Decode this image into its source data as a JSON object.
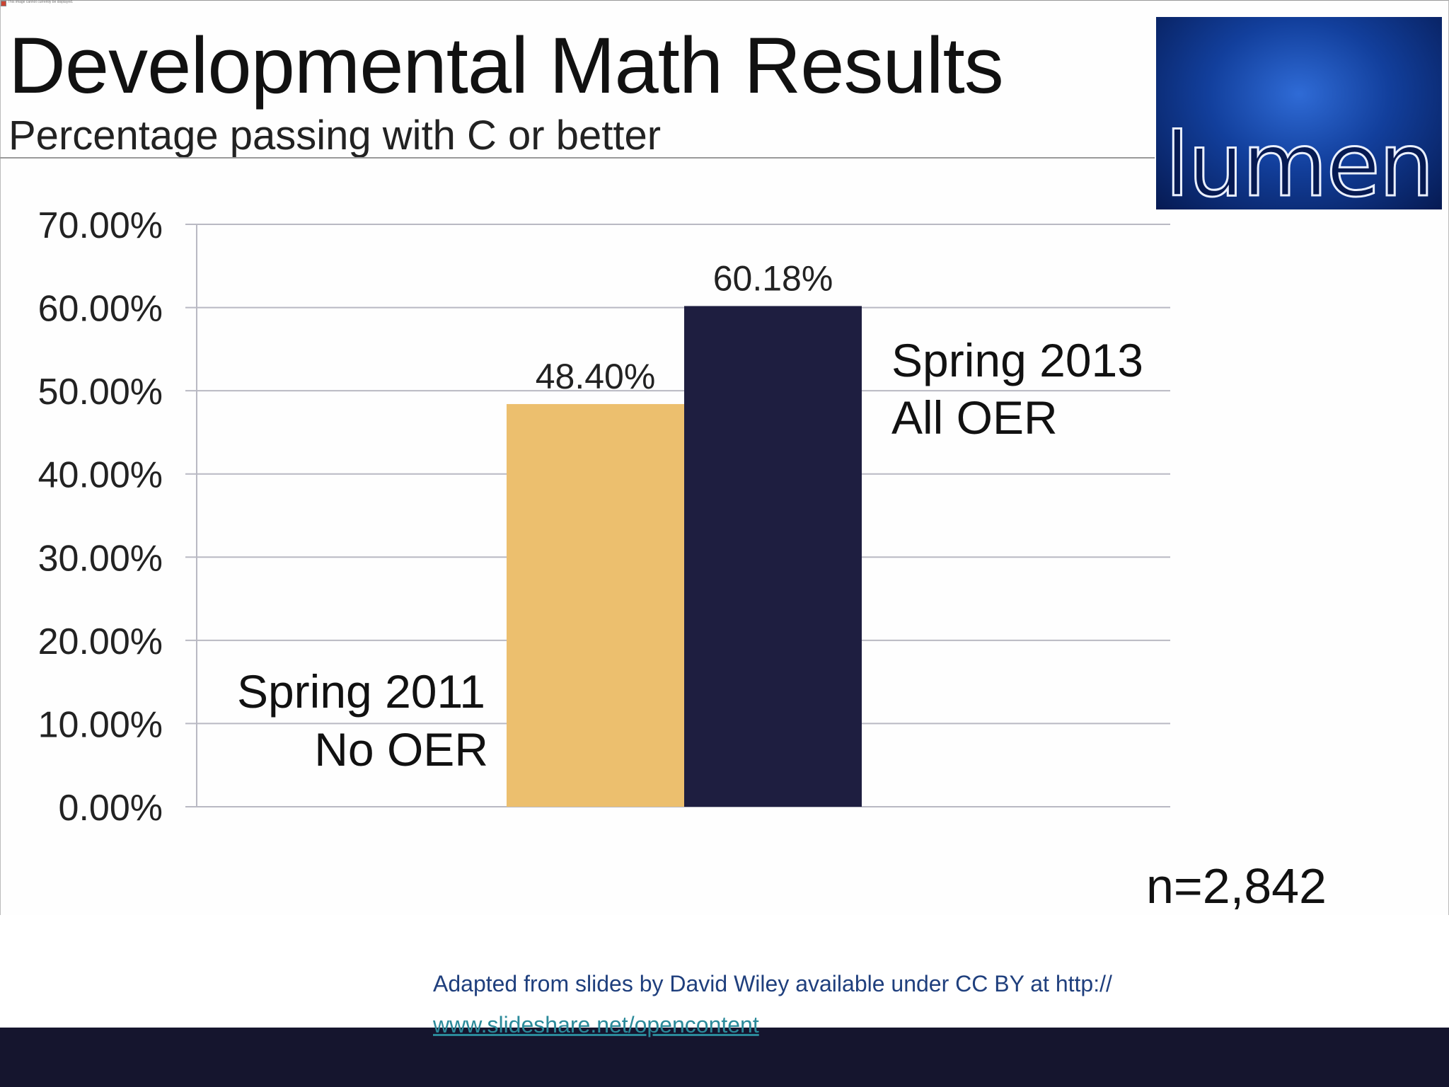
{
  "browser": {
    "broken_image_text": "This image cannot currently be displayed."
  },
  "slide": {
    "title": "Developmental Math Results",
    "subtitle": "Percentage passing with C or better",
    "logo_text": "lumen",
    "sample_size": "n=2,842"
  },
  "chart_data": {
    "type": "bar",
    "title": "Developmental Math Results",
    "subtitle": "Percentage passing with C or better",
    "xlabel": "",
    "ylabel": "",
    "ylim": [
      0,
      70
    ],
    "grid": true,
    "y_ticks": [
      "0.00%",
      "10.00%",
      "20.00%",
      "30.00%",
      "40.00%",
      "50.00%",
      "60.00%",
      "70.00%"
    ],
    "y_tick_values": [
      0,
      10,
      20,
      30,
      40,
      50,
      60,
      70
    ],
    "categories": [
      "Spring 2011 No OER",
      "Spring 2013 All OER"
    ],
    "values": [
      48.4,
      60.18
    ],
    "value_labels": [
      "48.40%",
      "60.18%"
    ],
    "colors": [
      "#ecbf6e",
      "#1e1e40"
    ],
    "annotations": [
      {
        "lines": [
          "Spring 2011",
          "No OER"
        ]
      },
      {
        "lines": [
          "Spring 2013",
          "All OER"
        ]
      }
    ]
  },
  "attribution": {
    "text": "Adapted from slides by David Wiley available under CC BY at http://",
    "link": "www.slideshare.net/opencontent"
  }
}
